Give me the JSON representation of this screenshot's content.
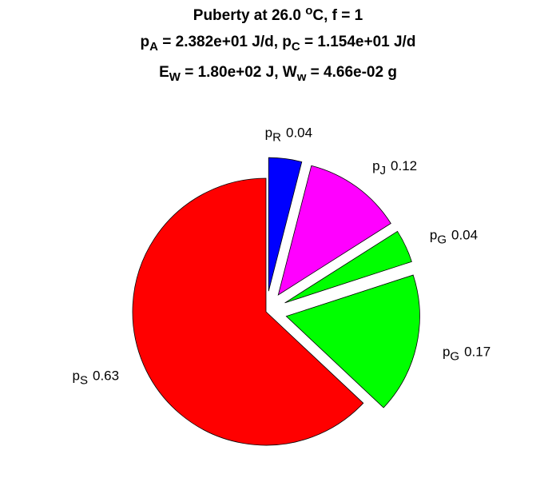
{
  "chart_data": {
    "type": "pie",
    "title": [
      [
        {
          "text": "Puberty at 26.0 "
        },
        {
          "text": "o",
          "shift": "super"
        },
        {
          "text": "C, f = 1"
        }
      ],
      [
        {
          "text": "p"
        },
        {
          "text": "A",
          "shift": "sub"
        },
        {
          "text": " = 2.382e+01 J/d,  p"
        },
        {
          "text": "C",
          "shift": "sub"
        },
        {
          "text": " = 1.154e+01 J/d"
        }
      ],
      [
        {
          "text": "E"
        },
        {
          "text": "W",
          "shift": "sub"
        },
        {
          "text": " = 1.80e+02 J, W"
        },
        {
          "text": "w",
          "shift": "sub"
        },
        {
          "text": " = 4.66e-02 g"
        }
      ]
    ],
    "categories": [
      {
        "text": "p",
        "sub": "R"
      },
      {
        "text": "p",
        "sub": "J"
      },
      {
        "text": "p",
        "sub": "G"
      },
      {
        "text": "p",
        "sub": "G"
      },
      {
        "text": "p",
        "sub": "S"
      }
    ],
    "values": [
      0.04,
      0.12,
      0.04,
      0.17,
      0.63
    ],
    "colors": [
      "#0000ff",
      "#ff00ff",
      "#00ff00",
      "#00ff00",
      "#ff0000"
    ],
    "explode": [
      true,
      true,
      true,
      true,
      false
    ]
  }
}
